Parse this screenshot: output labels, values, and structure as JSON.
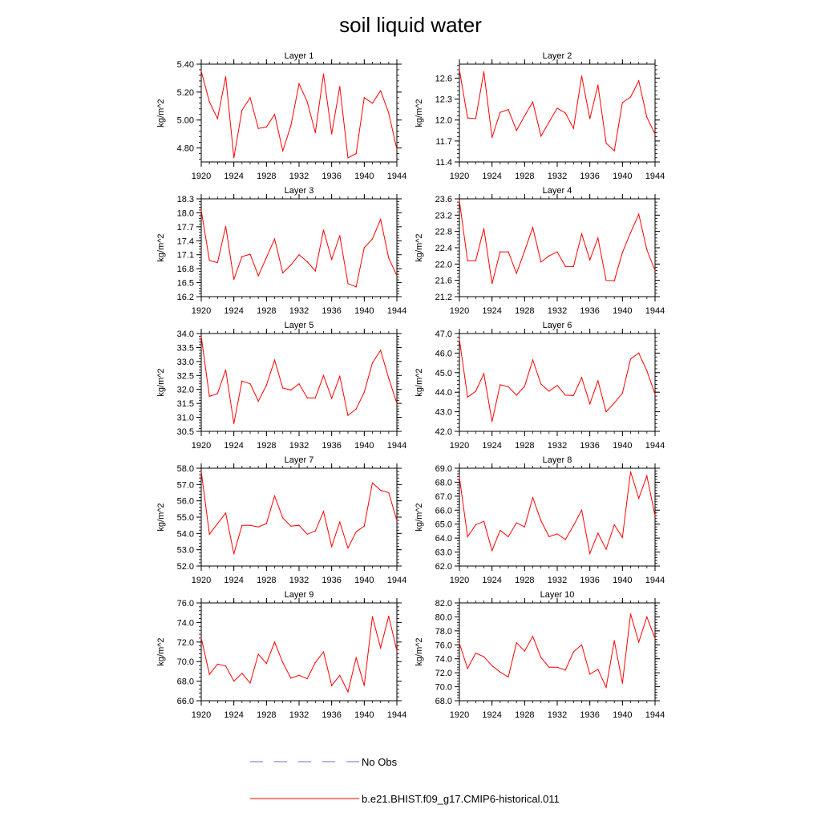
{
  "title": "soil liquid water",
  "colors": {
    "model": "#ff0000",
    "obs": "#6b6bd6",
    "axis": "#000000"
  },
  "legend": [
    {
      "label": "No Obs",
      "style": "dashed",
      "color": "#6b6bd6"
    },
    {
      "label": "b.e21.BHIST.f09_g17.CMIP6-historical.011",
      "style": "solid",
      "color": "#ff0000"
    }
  ],
  "chart_data": [
    {
      "type": "line",
      "title": "Layer 1",
      "ylabel": "kg/m^2",
      "xlim": [
        1920,
        1944
      ],
      "xticks": [
        "1920",
        "1924",
        "1928",
        "1932",
        "1936",
        "1940",
        "1944"
      ],
      "ylim": [
        4.7,
        5.4
      ],
      "yticks": [
        "4.80",
        "5.00",
        "5.20",
        "5.40"
      ],
      "series": [
        {
          "name": "b.e21.BHIST.f09_g17.CMIP6-historical.011",
          "x": [
            1920,
            1921,
            1922,
            1923,
            1924,
            1925,
            1926,
            1927,
            1928,
            1929,
            1930,
            1931,
            1932,
            1933,
            1934,
            1935,
            1936,
            1937,
            1938,
            1939,
            1940,
            1941,
            1942,
            1943,
            1944
          ],
          "y": [
            5.35,
            5.13,
            5.01,
            5.31,
            4.73,
            5.07,
            5.16,
            4.94,
            4.95,
            5.04,
            4.78,
            4.96,
            5.26,
            5.13,
            4.91,
            5.33,
            4.9,
            5.24,
            4.73,
            4.76,
            5.16,
            5.12,
            5.21,
            5.05,
            4.79
          ]
        }
      ]
    },
    {
      "type": "line",
      "title": "Layer 2",
      "ylabel": "kg/m^2",
      "xlim": [
        1920,
        1944
      ],
      "xticks": [
        "1920",
        "1924",
        "1928",
        "1932",
        "1936",
        "1940",
        "1944"
      ],
      "ylim": [
        11.4,
        12.8
      ],
      "yticks": [
        "11.4",
        "11.7",
        "12.0",
        "12.3",
        "12.6"
      ],
      "series": [
        {
          "name": "b.e21.BHIST.f09_g17.CMIP6-historical.011",
          "x": [
            1920,
            1921,
            1922,
            1923,
            1924,
            1925,
            1926,
            1927,
            1928,
            1929,
            1930,
            1931,
            1932,
            1933,
            1934,
            1935,
            1936,
            1937,
            1938,
            1939,
            1940,
            1941,
            1942,
            1943,
            1944
          ],
          "y": [
            12.72,
            12.03,
            12.02,
            12.69,
            11.75,
            12.11,
            12.15,
            11.85,
            12.06,
            12.26,
            11.77,
            11.97,
            12.17,
            12.1,
            11.88,
            12.63,
            12.02,
            12.5,
            11.67,
            11.56,
            12.25,
            12.33,
            12.56,
            12.04,
            11.8
          ]
        }
      ]
    },
    {
      "type": "line",
      "title": "Layer 3",
      "ylabel": "kg/m^2",
      "xlim": [
        1920,
        1944
      ],
      "xticks": [
        "1920",
        "1924",
        "1928",
        "1932",
        "1936",
        "1940",
        "1944"
      ],
      "ylim": [
        16.2,
        18.3
      ],
      "yticks": [
        "16.2",
        "16.5",
        "16.8",
        "17.1",
        "17.4",
        "17.7",
        "18.0",
        "18.3"
      ],
      "series": [
        {
          "name": "b.e21.BHIST.f09_g17.CMIP6-historical.011",
          "x": [
            1920,
            1921,
            1922,
            1923,
            1924,
            1925,
            1926,
            1927,
            1928,
            1929,
            1930,
            1931,
            1932,
            1933,
            1934,
            1935,
            1936,
            1937,
            1938,
            1939,
            1940,
            1941,
            1942,
            1943,
            1944
          ],
          "y": [
            18.05,
            16.98,
            16.93,
            17.71,
            16.57,
            17.06,
            17.11,
            16.65,
            17.04,
            17.44,
            16.71,
            16.88,
            17.1,
            16.95,
            16.75,
            17.63,
            17.0,
            17.51,
            16.48,
            16.41,
            17.25,
            17.44,
            17.86,
            17.03,
            16.65
          ]
        }
      ]
    },
    {
      "type": "line",
      "title": "Layer 4",
      "ylabel": "kg/m^2",
      "xlim": [
        1920,
        1944
      ],
      "xticks": [
        "1920",
        "1924",
        "1928",
        "1932",
        "1936",
        "1940",
        "1944"
      ],
      "ylim": [
        21.2,
        23.6
      ],
      "yticks": [
        "21.2",
        "21.6",
        "22.0",
        "22.4",
        "22.8",
        "23.2",
        "23.6"
      ],
      "series": [
        {
          "name": "b.e21.BHIST.f09_g17.CMIP6-historical.011",
          "x": [
            1920,
            1921,
            1922,
            1923,
            1924,
            1925,
            1926,
            1927,
            1928,
            1929,
            1930,
            1931,
            1932,
            1933,
            1934,
            1935,
            1936,
            1937,
            1938,
            1939,
            1940,
            1941,
            1942,
            1943,
            1944
          ],
          "y": [
            23.55,
            22.08,
            22.08,
            22.87,
            21.52,
            22.3,
            22.3,
            21.77,
            22.32,
            22.9,
            22.05,
            22.2,
            22.3,
            21.94,
            21.94,
            22.74,
            22.1,
            22.64,
            21.6,
            21.59,
            22.28,
            22.77,
            23.22,
            22.35,
            21.84
          ]
        }
      ]
    },
    {
      "type": "line",
      "title": "Layer 5",
      "ylabel": "kg/m^2",
      "xlim": [
        1920,
        1944
      ],
      "xticks": [
        "1920",
        "1924",
        "1928",
        "1932",
        "1936",
        "1940",
        "1944"
      ],
      "ylim": [
        30.5,
        34.0
      ],
      "yticks": [
        "30.5",
        "31.0",
        "31.5",
        "32.0",
        "32.5",
        "33.0",
        "33.5",
        "34.0"
      ],
      "series": [
        {
          "name": "b.e21.BHIST.f09_g17.CMIP6-historical.011",
          "x": [
            1920,
            1921,
            1922,
            1923,
            1924,
            1925,
            1926,
            1927,
            1928,
            1929,
            1930,
            1931,
            1932,
            1933,
            1934,
            1935,
            1936,
            1937,
            1938,
            1939,
            1940,
            1941,
            1942,
            1943,
            1944
          ],
          "y": [
            33.9,
            31.75,
            31.85,
            32.7,
            30.78,
            32.3,
            32.2,
            31.58,
            32.15,
            33.05,
            32.05,
            31.98,
            32.2,
            31.7,
            31.7,
            32.5,
            31.68,
            32.47,
            31.07,
            31.3,
            31.9,
            32.95,
            33.4,
            32.4,
            31.5
          ]
        }
      ]
    },
    {
      "type": "line",
      "title": "Layer 6",
      "ylabel": "kg/m^2",
      "xlim": [
        1920,
        1944
      ],
      "xticks": [
        "1920",
        "1924",
        "1928",
        "1932",
        "1936",
        "1940",
        "1944"
      ],
      "ylim": [
        42.0,
        47.0
      ],
      "yticks": [
        "42.0",
        "43.0",
        "44.0",
        "45.0",
        "46.0",
        "47.0"
      ],
      "series": [
        {
          "name": "b.e21.BHIST.f09_g17.CMIP6-historical.011",
          "x": [
            1920,
            1921,
            1922,
            1923,
            1924,
            1925,
            1926,
            1927,
            1928,
            1929,
            1930,
            1931,
            1932,
            1933,
            1934,
            1935,
            1936,
            1937,
            1938,
            1939,
            1940,
            1941,
            1942,
            1943,
            1944
          ],
          "y": [
            46.7,
            43.75,
            44.05,
            44.95,
            42.5,
            44.38,
            44.28,
            43.85,
            44.3,
            45.65,
            44.42,
            44.05,
            44.35,
            43.85,
            43.83,
            44.75,
            43.4,
            44.58,
            43.0,
            43.45,
            43.95,
            45.7,
            46.0,
            45.1,
            43.9
          ]
        }
      ]
    },
    {
      "type": "line",
      "title": "Layer 7",
      "ylabel": "kg/m^2",
      "xlim": [
        1920,
        1944
      ],
      "xticks": [
        "1920",
        "1924",
        "1928",
        "1932",
        "1936",
        "1940",
        "1944"
      ],
      "ylim": [
        52.0,
        58.0
      ],
      "yticks": [
        "52.0",
        "53.0",
        "54.0",
        "55.0",
        "56.0",
        "57.0",
        "58.0"
      ],
      "series": [
        {
          "name": "b.e21.BHIST.f09_g17.CMIP6-historical.011",
          "x": [
            1920,
            1921,
            1922,
            1923,
            1924,
            1925,
            1926,
            1927,
            1928,
            1929,
            1930,
            1931,
            1932,
            1933,
            1934,
            1935,
            1936,
            1937,
            1938,
            1939,
            1940,
            1941,
            1942,
            1943,
            1944
          ],
          "y": [
            57.8,
            53.95,
            54.6,
            55.25,
            52.75,
            54.5,
            54.5,
            54.4,
            54.6,
            56.3,
            54.95,
            54.45,
            54.5,
            53.95,
            54.15,
            55.35,
            53.2,
            54.7,
            53.1,
            54.1,
            54.45,
            57.1,
            56.65,
            56.5,
            54.8
          ]
        }
      ]
    },
    {
      "type": "line",
      "title": "Layer 8",
      "ylabel": "kg/m^2",
      "xlim": [
        1920,
        1944
      ],
      "xticks": [
        "1920",
        "1924",
        "1928",
        "1932",
        "1936",
        "1940",
        "1944"
      ],
      "ylim": [
        62.0,
        69.0
      ],
      "yticks": [
        "62.0",
        "63.0",
        "64.0",
        "65.0",
        "66.0",
        "67.0",
        "68.0",
        "69.0"
      ],
      "series": [
        {
          "name": "b.e21.BHIST.f09_g17.CMIP6-historical.011",
          "x": [
            1920,
            1921,
            1922,
            1923,
            1924,
            1925,
            1926,
            1927,
            1928,
            1929,
            1930,
            1931,
            1932,
            1933,
            1934,
            1935,
            1936,
            1937,
            1938,
            1939,
            1940,
            1941,
            1942,
            1943,
            1944
          ],
          "y": [
            68.35,
            64.1,
            64.95,
            65.2,
            63.1,
            64.55,
            64.1,
            65.1,
            64.8,
            66.9,
            65.25,
            64.1,
            64.3,
            63.9,
            64.9,
            66.0,
            62.9,
            64.35,
            63.2,
            64.95,
            64.05,
            68.75,
            66.85,
            68.45,
            65.6
          ]
        }
      ]
    },
    {
      "type": "line",
      "title": "Layer 9",
      "ylabel": "kg/m^2",
      "xlim": [
        1920,
        1944
      ],
      "xticks": [
        "1920",
        "1924",
        "1928",
        "1932",
        "1936",
        "1940",
        "1944"
      ],
      "ylim": [
        66.0,
        76.0
      ],
      "yticks": [
        "66.0",
        "68.0",
        "70.0",
        "72.0",
        "74.0",
        "76.0"
      ],
      "series": [
        {
          "name": "b.e21.BHIST.f09_g17.CMIP6-historical.011",
          "x": [
            1920,
            1921,
            1922,
            1923,
            1924,
            1925,
            1926,
            1927,
            1928,
            1929,
            1930,
            1931,
            1932,
            1933,
            1934,
            1935,
            1936,
            1937,
            1938,
            1939,
            1940,
            1941,
            1942,
            1943,
            1944
          ],
          "y": [
            72.4,
            68.7,
            69.75,
            69.55,
            68.0,
            68.8,
            67.8,
            70.75,
            69.8,
            72.0,
            69.9,
            68.3,
            68.6,
            68.25,
            69.9,
            71.0,
            67.55,
            68.6,
            66.9,
            70.4,
            67.55,
            74.6,
            71.4,
            74.65,
            71.1
          ]
        }
      ]
    },
    {
      "type": "line",
      "title": "Layer 10",
      "ylabel": "kg/m^2",
      "xlim": [
        1920,
        1944
      ],
      "xticks": [
        "1920",
        "1924",
        "1928",
        "1932",
        "1936",
        "1940",
        "1944"
      ],
      "ylim": [
        68.0,
        82.0
      ],
      "yticks": [
        "68.0",
        "70.0",
        "72.0",
        "74.0",
        "76.0",
        "78.0",
        "80.0",
        "82.0"
      ],
      "series": [
        {
          "name": "b.e21.BHIST.f09_g17.CMIP6-historical.011",
          "x": [
            1920,
            1921,
            1922,
            1923,
            1924,
            1925,
            1926,
            1927,
            1928,
            1929,
            1930,
            1931,
            1932,
            1933,
            1934,
            1935,
            1936,
            1937,
            1938,
            1939,
            1940,
            1941,
            1942,
            1943,
            1944
          ],
          "y": [
            76.2,
            72.6,
            74.8,
            74.3,
            73.0,
            72.1,
            71.4,
            76.3,
            75.1,
            77.2,
            74.2,
            72.8,
            72.8,
            72.4,
            75.0,
            76.0,
            71.8,
            72.5,
            69.9,
            76.6,
            70.5,
            80.4,
            76.4,
            80.0,
            76.9
          ]
        }
      ]
    }
  ]
}
